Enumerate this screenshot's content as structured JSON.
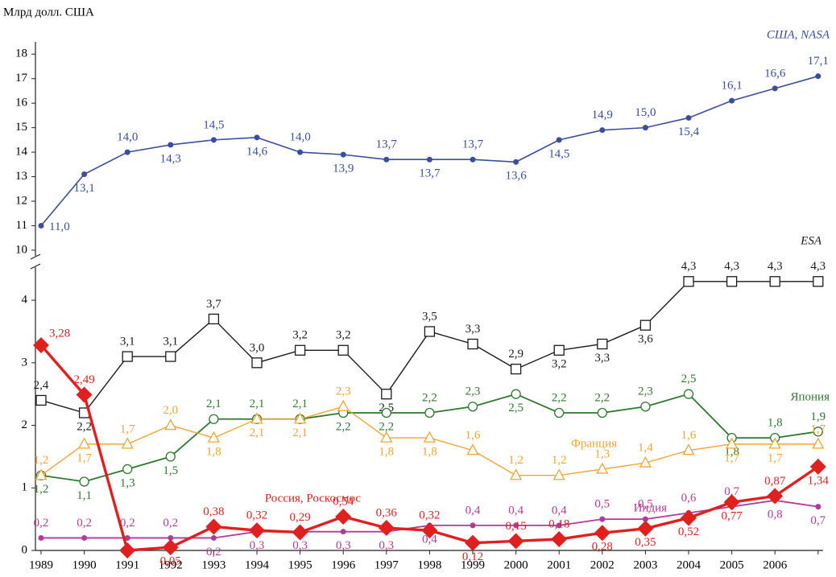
{
  "chart_data": {
    "type": "line",
    "y_axis_label": "Млрд долл. США",
    "categories": [
      "1989",
      "1990",
      "1991",
      "1992",
      "1993",
      "1994",
      "1995",
      "1996",
      "1997",
      "1998",
      "1999",
      "2000",
      "2001",
      "2002",
      "2003",
      "2004",
      "2005",
      "2006",
      null
    ],
    "ylim": [
      0,
      4.4
    ],
    "yticks": [
      0,
      1,
      2,
      3,
      4
    ],
    "upper_ylim": [
      9.8,
      18.6
    ],
    "upper_yticks": [
      10,
      11,
      12,
      13,
      14,
      15,
      16,
      17,
      18
    ],
    "series": [
      {
        "name": "США, NASA",
        "color": "#3a4d9e",
        "marker": "dot",
        "axis": "upper",
        "values": [
          11.0,
          13.1,
          14.0,
          14.3,
          14.5,
          14.6,
          14.0,
          13.9,
          13.7,
          13.7,
          13.7,
          13.6,
          14.5,
          14.9,
          15.0,
          15.4,
          16.1,
          16.6,
          17.1
        ],
        "value_labels": [
          "11,0",
          "13,1",
          "14,0",
          "14,3",
          "14,5",
          "14,6",
          "14,0",
          "13,9",
          "13,7",
          "13,7",
          "13,7",
          "13,6",
          "14,5",
          "14,9",
          "15,0",
          "15,4",
          "16,1",
          "16,6",
          "17,1"
        ]
      },
      {
        "name": "ESA",
        "color": "#1a1a1a",
        "marker": "square",
        "values": [
          2.4,
          2.2,
          3.1,
          3.1,
          3.7,
          3.0,
          3.2,
          3.2,
          2.5,
          3.5,
          3.3,
          2.9,
          3.2,
          3.3,
          3.6,
          4.3,
          4.3,
          4.3,
          4.3
        ],
        "value_labels": [
          "2,4",
          "2,2",
          "3,1",
          "3,1",
          "3,7",
          "3,0",
          "3,2",
          "3,2",
          "2,5",
          "3,5",
          "3,3",
          "2,9",
          "3,2",
          "3,3",
          "3,6",
          "4,3",
          "4,3",
          "4,3",
          "4,3"
        ]
      },
      {
        "name": "Япония",
        "color": "#2e7a2e",
        "marker": "circle",
        "values": [
          1.2,
          1.1,
          1.3,
          1.5,
          2.1,
          2.1,
          2.1,
          2.2,
          2.2,
          2.2,
          2.3,
          2.5,
          2.2,
          2.2,
          2.3,
          2.5,
          1.8,
          1.8,
          1.9
        ],
        "value_labels": [
          "1,2",
          "1,1",
          "1,3",
          "1,5",
          "2,1",
          "2,1",
          "2,1",
          "2,2",
          "2,2",
          "2,2",
          "2,3",
          "2,5",
          "2,2",
          "2,2",
          "2,3",
          "2,5",
          "1,8",
          "1,8",
          "1,9"
        ]
      },
      {
        "name": "Франция",
        "color": "#f2a530",
        "marker": "triangle",
        "values": [
          1.2,
          1.7,
          1.7,
          2.0,
          1.8,
          2.1,
          2.1,
          2.3,
          1.8,
          1.8,
          1.6,
          1.2,
          1.2,
          1.3,
          1.4,
          1.6,
          1.7,
          1.7,
          1.7
        ],
        "value_labels": [
          "1,2",
          "1,7",
          "1,7",
          "2,0",
          "1,8",
          "2,1",
          "2,1",
          "2,3",
          "1,8",
          "1,8",
          "1,6",
          "1,2",
          "1,2",
          "1,3",
          "1,4",
          "1,6",
          "1,7",
          "1,7",
          "1,7"
        ]
      },
      {
        "name": "Индия",
        "color": "#b23a9c",
        "marker": "dot",
        "values": [
          0.2,
          0.2,
          0.2,
          0.2,
          0.2,
          0.3,
          0.3,
          0.3,
          0.3,
          0.4,
          0.4,
          0.4,
          0.4,
          0.5,
          0.5,
          0.6,
          0.7,
          0.8,
          0.7
        ],
        "value_labels": [
          "0,2",
          "0,2",
          "0,2",
          "0,2",
          "0,2",
          "0,3",
          "0,3",
          "0,3",
          "0,3",
          "0,4",
          "0,4",
          "0,4",
          "0,4",
          "0,5",
          "0,5",
          "0,6",
          "0,7",
          "0,8",
          "0,7"
        ]
      },
      {
        "name": "Россия, Роскосмос",
        "color": "#e0201e",
        "marker": "diamond",
        "values": [
          3.28,
          2.49,
          0,
          0.05,
          0.38,
          0.32,
          0.29,
          0.54,
          0.36,
          0.32,
          0.12,
          0.15,
          0.18,
          0.28,
          0.35,
          0.52,
          0.77,
          0.87,
          1.34
        ],
        "value_labels": [
          "3,28",
          "2,49",
          null,
          "0,05",
          "0,38",
          "0,32",
          "0,29",
          "0,54",
          "0,36",
          "0,32",
          "0,12",
          "0,15",
          "0,18",
          "0,28",
          "0,35",
          "0,52",
          "0,77",
          "0,87",
          "1,34"
        ]
      }
    ]
  }
}
